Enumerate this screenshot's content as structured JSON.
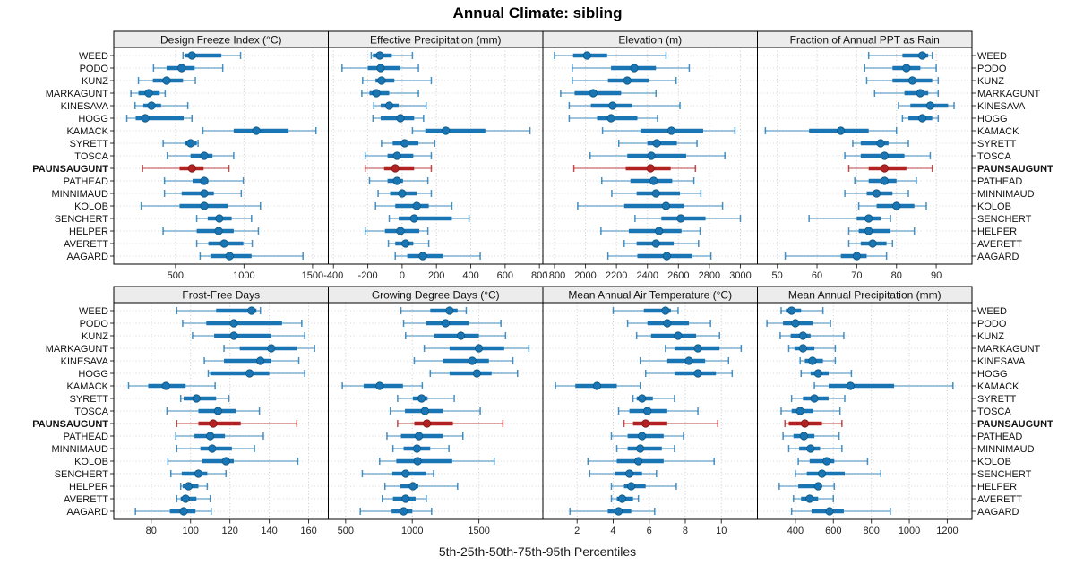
{
  "title": "Annual Climate: sibling",
  "caption": "5th-25th-50th-75th-95th Percentiles",
  "stations": [
    "WEED",
    "PODO",
    "KUNZ",
    "MARKAGUNT",
    "KINESAVA",
    "HOGG",
    "KAMACK",
    "SYRETT",
    "TOSCA",
    "PAUNSAUGUNT",
    "PATHEAD",
    "MINNIMAUD",
    "KOLOB",
    "SENCHERT",
    "HELPER",
    "AVERETT",
    "AAGARD"
  ],
  "highlight_station": "PAUNSAUGUNT",
  "colors": {
    "series": "#1a75b4",
    "series_dark": "#0e567f",
    "highlight": "#b22222",
    "highlight_dark": "#7c1715",
    "strip_bg": "#ececec",
    "panel_border": "#000000",
    "grid": "#cdcdcd",
    "row_grid": "#d8d8d8",
    "tick": "#333333",
    "label": "#111111"
  },
  "chart_data": {
    "type": "dotplot-percentiles",
    "percentile_labels": [
      "5th",
      "25th",
      "50th",
      "75th",
      "95th"
    ],
    "legend_note": "each row: thin line 5th-95th, thick bar 25th-75th, dot 50th",
    "panels": [
      {
        "title": "Design Freeze Index (°C)",
        "grid_row": 0,
        "grid_col": 0,
        "xlim": [
          50,
          1615
        ],
        "ticks": [
          500,
          1000,
          1500
        ],
        "values": [
          [
            555,
            570,
            620,
            835,
            975
          ],
          [
            340,
            435,
            545,
            640,
            845
          ],
          [
            230,
            335,
            435,
            555,
            645
          ],
          [
            175,
            230,
            305,
            385,
            425
          ],
          [
            205,
            265,
            325,
            395,
            590
          ],
          [
            145,
            210,
            280,
            560,
            620
          ],
          [
            700,
            925,
            1090,
            1325,
            1525
          ],
          [
            410,
            570,
            610,
            655,
            665
          ],
          [
            440,
            610,
            710,
            770,
            925
          ],
          [
            260,
            530,
            620,
            705,
            890
          ],
          [
            420,
            625,
            710,
            740,
            995
          ],
          [
            420,
            545,
            710,
            780,
            980
          ],
          [
            250,
            530,
            710,
            880,
            1120
          ],
          [
            655,
            735,
            820,
            910,
            1055
          ],
          [
            410,
            655,
            815,
            925,
            1105
          ],
          [
            655,
            740,
            855,
            995,
            1060
          ],
          [
            680,
            755,
            895,
            1055,
            1430
          ]
        ]
      },
      {
        "title": "Effective Precipitation (mm)",
        "grid_row": 0,
        "grid_col": 1,
        "xlim": [
          -430,
          820
        ],
        "ticks": [
          -400,
          -200,
          0,
          200,
          400,
          600,
          800
        ],
        "values": [
          [
            -180,
            -170,
            -130,
            -60,
            60
          ],
          [
            -350,
            -200,
            -125,
            -10,
            95
          ],
          [
            -230,
            -155,
            -120,
            -45,
            170
          ],
          [
            -235,
            -190,
            -150,
            -75,
            95
          ],
          [
            -165,
            -125,
            -75,
            -20,
            140
          ],
          [
            -170,
            -125,
            -10,
            70,
            125
          ],
          [
            60,
            135,
            255,
            485,
            745
          ],
          [
            -120,
            -55,
            15,
            95,
            190
          ],
          [
            -215,
            -85,
            -30,
            65,
            170
          ],
          [
            -215,
            -105,
            -40,
            70,
            170
          ],
          [
            -190,
            -85,
            -30,
            5,
            150
          ],
          [
            -140,
            -70,
            0,
            85,
            170
          ],
          [
            -155,
            -40,
            85,
            155,
            290
          ],
          [
            -75,
            -20,
            70,
            290,
            390
          ],
          [
            -215,
            -100,
            -10,
            100,
            150
          ],
          [
            -80,
            -40,
            20,
            65,
            155
          ],
          [
            -40,
            30,
            120,
            240,
            455
          ]
        ]
      },
      {
        "title": "Elevation (m)",
        "grid_row": 0,
        "grid_col": 2,
        "xlim": [
          1725,
          3110
        ],
        "ticks": [
          1800,
          2000,
          2200,
          2400,
          2600,
          2800,
          3000
        ],
        "values": [
          [
            1800,
            1920,
            2010,
            2140,
            2520
          ],
          [
            1915,
            2165,
            2315,
            2455,
            2670
          ],
          [
            1915,
            2145,
            2270,
            2410,
            2585
          ],
          [
            1840,
            1930,
            2050,
            2230,
            2455
          ],
          [
            1895,
            2035,
            2175,
            2300,
            2610
          ],
          [
            1895,
            2075,
            2165,
            2335,
            2465
          ],
          [
            2110,
            2355,
            2555,
            2760,
            2965
          ],
          [
            2215,
            2400,
            2460,
            2590,
            2720
          ],
          [
            2030,
            2270,
            2425,
            2650,
            2900
          ],
          [
            1925,
            2260,
            2420,
            2550,
            2710
          ],
          [
            2105,
            2290,
            2440,
            2560,
            2700
          ],
          [
            2170,
            2330,
            2455,
            2610,
            2745
          ],
          [
            1950,
            2250,
            2520,
            2635,
            2885
          ],
          [
            2320,
            2490,
            2615,
            2775,
            3000
          ],
          [
            2100,
            2280,
            2475,
            2620,
            2740
          ],
          [
            2250,
            2330,
            2455,
            2570,
            2730
          ],
          [
            2145,
            2335,
            2525,
            2690,
            2810
          ]
        ]
      },
      {
        "title": "Fraction of Annual PPT as Rain",
        "grid_row": 0,
        "grid_col": 3,
        "xlim": [
          45,
          99
        ],
        "ticks": [
          50,
          60,
          70,
          80,
          90
        ],
        "values": [
          [
            73,
            81.5,
            86.5,
            88,
            89
          ],
          [
            72,
            79,
            82.5,
            86,
            90
          ],
          [
            72.5,
            79,
            84,
            89,
            90.5
          ],
          [
            74.5,
            82,
            86,
            88,
            90.5
          ],
          [
            80.5,
            83.5,
            88.5,
            93,
            94.5
          ],
          [
            81.5,
            83,
            86.5,
            89,
            90.5
          ],
          [
            47,
            58,
            66,
            73,
            80
          ],
          [
            69,
            71,
            76,
            78,
            83
          ],
          [
            67,
            71,
            77,
            82,
            88.5
          ],
          [
            68,
            73,
            77,
            82.5,
            89
          ],
          [
            69.5,
            73,
            77,
            80,
            85
          ],
          [
            67,
            72.5,
            75,
            79,
            83
          ],
          [
            70.5,
            75,
            80,
            84.5,
            87.5
          ],
          [
            58,
            70,
            73,
            76,
            78.5
          ],
          [
            68,
            70.5,
            73,
            78.5,
            84.5
          ],
          [
            68,
            71,
            74,
            77.5,
            79
          ],
          [
            52,
            66,
            70,
            72.5,
            77.5
          ]
        ]
      },
      {
        "title": "Frost-Free Days",
        "grid_row": 1,
        "grid_col": 0,
        "xlim": [
          61,
          170
        ],
        "ticks": [
          80,
          100,
          120,
          140,
          160
        ],
        "values": [
          [
            93,
            113,
            131,
            133.5,
            135.5
          ],
          [
            96,
            108,
            122,
            146.5,
            156.5
          ],
          [
            101,
            112,
            122,
            141,
            158
          ],
          [
            117,
            125,
            141,
            154,
            163
          ],
          [
            107,
            117,
            135.5,
            141,
            155
          ],
          [
            109,
            110,
            130,
            140,
            158
          ],
          [
            68.5,
            78.5,
            87.5,
            97.5,
            112.5
          ],
          [
            95,
            96.5,
            103,
            113,
            119.5
          ],
          [
            88,
            104,
            114,
            123,
            135
          ],
          [
            93,
            104,
            111.5,
            125.5,
            154
          ],
          [
            92.5,
            102,
            110,
            117.5,
            137
          ],
          [
            93,
            105,
            111,
            121,
            132.5
          ],
          [
            88.5,
            106,
            118,
            122,
            154.5
          ],
          [
            90,
            95.5,
            104,
            108.5,
            118
          ],
          [
            95,
            96,
            99,
            104,
            108.5
          ],
          [
            93,
            95,
            97.5,
            103,
            110
          ],
          [
            72,
            89.5,
            96.5,
            102.5,
            110.5
          ]
        ]
      },
      {
        "title": "Growing Degree Days (°C)",
        "grid_row": 1,
        "grid_col": 1,
        "xlim": [
          370,
          1980
        ],
        "ticks": [
          500,
          1000,
          1500
        ],
        "values": [
          [
            915,
            1135,
            1280,
            1340,
            1405
          ],
          [
            935,
            1105,
            1250,
            1425,
            1665
          ],
          [
            950,
            1165,
            1365,
            1500,
            1700
          ],
          [
            1090,
            1280,
            1500,
            1690,
            1875
          ],
          [
            1015,
            1230,
            1450,
            1575,
            1755
          ],
          [
            1135,
            1280,
            1485,
            1595,
            1790
          ],
          [
            475,
            635,
            755,
            930,
            1075
          ],
          [
            890,
            1005,
            1070,
            1115,
            1315
          ],
          [
            835,
            945,
            1095,
            1230,
            1510
          ],
          [
            890,
            1015,
            1110,
            1305,
            1680
          ],
          [
            810,
            915,
            1050,
            1230,
            1380
          ],
          [
            855,
            935,
            1035,
            1135,
            1275
          ],
          [
            755,
            880,
            1040,
            1300,
            1615
          ],
          [
            625,
            850,
            950,
            1105,
            1160
          ],
          [
            795,
            910,
            1005,
            1045,
            1340
          ],
          [
            775,
            855,
            950,
            1025,
            1105
          ],
          [
            610,
            845,
            935,
            1000,
            1145
          ]
        ]
      },
      {
        "title": "Mean Annual Air Temperature (°C)",
        "grid_row": 1,
        "grid_col": 2,
        "xlim": [
          0.1,
          12
        ],
        "ticks": [
          2,
          4,
          6,
          8,
          10
        ],
        "values": [
          [
            4.0,
            5.7,
            6.9,
            7.2,
            7.6
          ],
          [
            4.8,
            5.9,
            7.0,
            8.2,
            9.4
          ],
          [
            5.3,
            6.1,
            7.6,
            8.6,
            9.9
          ],
          [
            6.9,
            7.4,
            8.7,
            9.9,
            11.1
          ],
          [
            5.5,
            7.0,
            8.2,
            9.1,
            10.4
          ],
          [
            5.8,
            7.4,
            8.7,
            9.7,
            10.6
          ],
          [
            0.8,
            1.9,
            3.1,
            4.2,
            5.5
          ],
          [
            5.1,
            5.3,
            5.6,
            6.2,
            7.4
          ],
          [
            4.3,
            4.9,
            5.9,
            7.0,
            8.7
          ],
          [
            4.6,
            5.1,
            5.8,
            7.0,
            9.8
          ],
          [
            3.9,
            4.8,
            5.6,
            6.8,
            7.9
          ],
          [
            4.2,
            4.8,
            5.5,
            6.7,
            7.4
          ],
          [
            2.6,
            4.2,
            5.4,
            6.8,
            9.6
          ],
          [
            2.7,
            4.1,
            4.9,
            5.6,
            6.4
          ],
          [
            3.9,
            4.6,
            5.0,
            5.8,
            7.5
          ],
          [
            3.9,
            4.2,
            4.5,
            5.1,
            5.4
          ],
          [
            1.6,
            3.7,
            4.3,
            5.0,
            6.3
          ]
        ]
      },
      {
        "title": "Mean Annual Precipitation (mm)",
        "grid_row": 1,
        "grid_col": 3,
        "xlim": [
          200,
          1330
        ],
        "ticks": [
          400,
          600,
          800,
          1000,
          1200
        ],
        "values": [
          [
            325,
            350,
            380,
            430,
            545
          ],
          [
            250,
            335,
            400,
            490,
            585
          ],
          [
            320,
            375,
            440,
            480,
            655
          ],
          [
            365,
            395,
            440,
            500,
            610
          ],
          [
            425,
            450,
            490,
            545,
            610
          ],
          [
            430,
            480,
            520,
            575,
            695
          ],
          [
            500,
            575,
            690,
            920,
            1230
          ],
          [
            380,
            440,
            500,
            575,
            660
          ],
          [
            325,
            380,
            425,
            495,
            635
          ],
          [
            345,
            365,
            450,
            540,
            645
          ],
          [
            335,
            390,
            445,
            500,
            630
          ],
          [
            365,
            420,
            480,
            530,
            645
          ],
          [
            415,
            475,
            565,
            605,
            780
          ],
          [
            400,
            460,
            540,
            660,
            850
          ],
          [
            315,
            415,
            520,
            530,
            605
          ],
          [
            390,
            430,
            475,
            520,
            600
          ],
          [
            380,
            485,
            580,
            655,
            900
          ]
        ]
      }
    ]
  }
}
